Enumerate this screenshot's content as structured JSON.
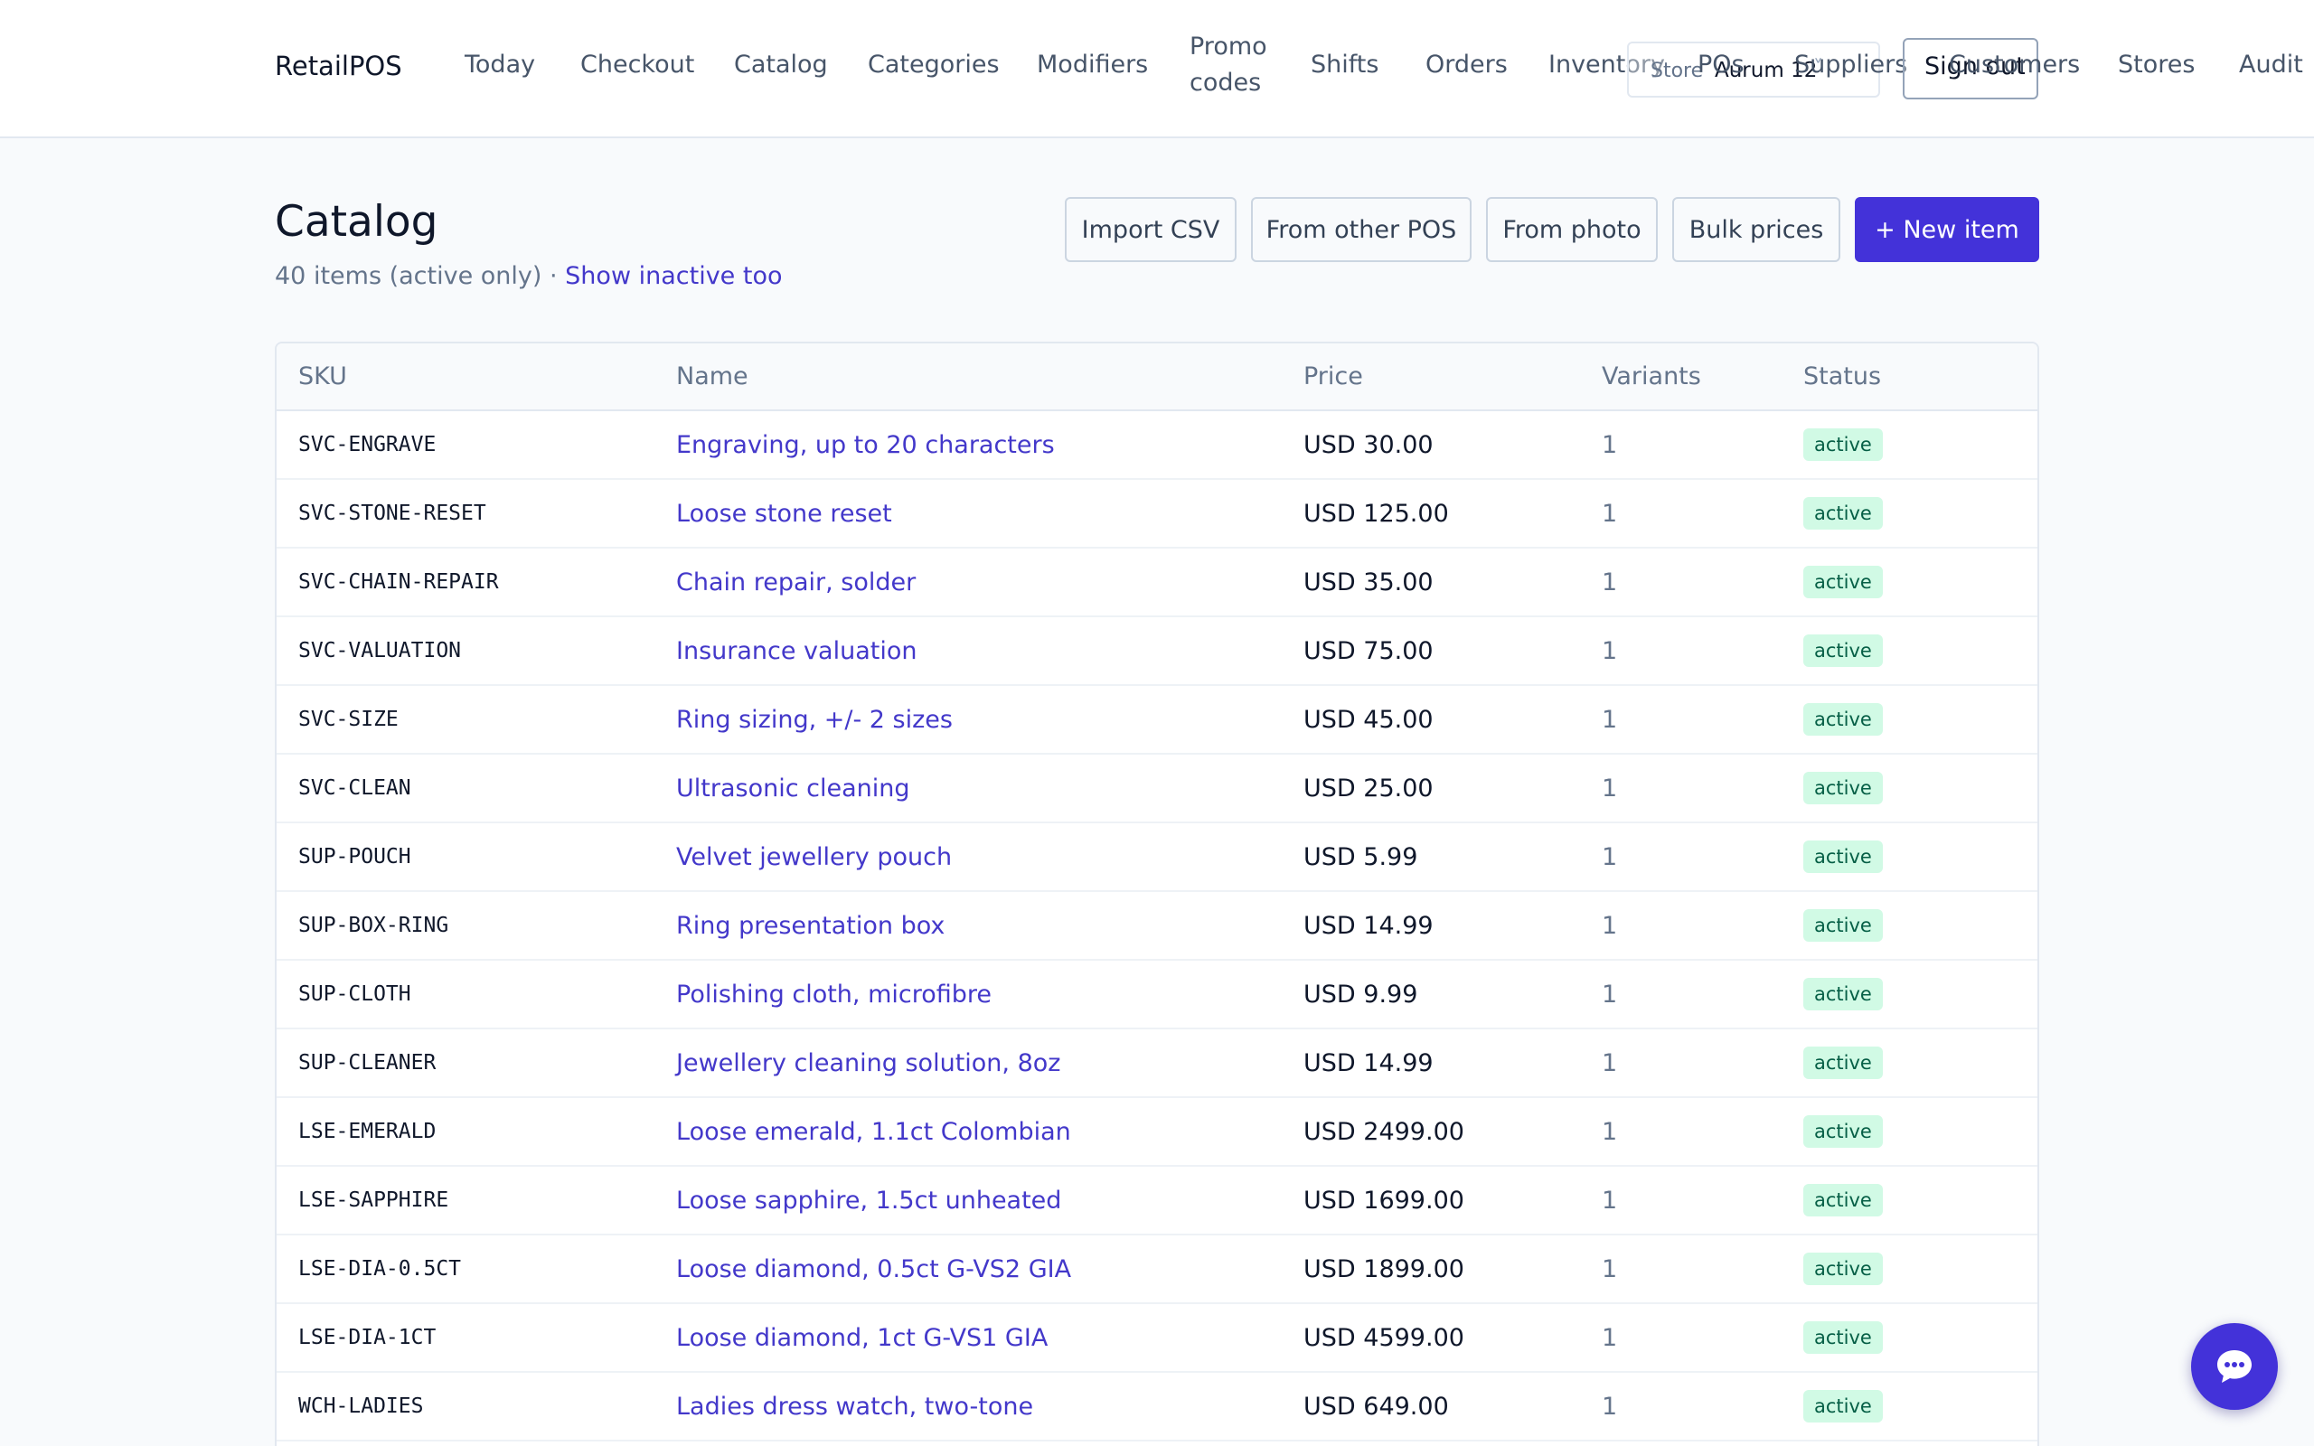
{
  "app": {
    "brand": "RetailPOS"
  },
  "nav": {
    "items": [
      {
        "label": "Today"
      },
      {
        "label": "Checkout"
      },
      {
        "label": "Catalog"
      },
      {
        "label": "Categories"
      },
      {
        "label": "Modifiers"
      },
      {
        "label": "Promo codes"
      },
      {
        "label": "Shifts"
      },
      {
        "label": "Orders"
      },
      {
        "label": "Inventory"
      },
      {
        "label": "POs"
      },
      {
        "label": "Suppliers"
      },
      {
        "label": "Customers"
      },
      {
        "label": "Stores"
      },
      {
        "label": "Audit"
      }
    ],
    "store_label": "Store",
    "store_value": "Aurum 12",
    "store_chevron": "˅",
    "sign_out": "Sign out"
  },
  "header": {
    "title": "Catalog",
    "count_text": "40 items (active only) · ",
    "show_inactive": "Show inactive too"
  },
  "actions": {
    "import_csv": "Import CSV",
    "from_other_pos": "From other POS",
    "from_photo": "From photo",
    "bulk_prices": "Bulk prices",
    "new_item": "+ New item"
  },
  "table": {
    "columns": [
      "SKU",
      "Name",
      "Price",
      "Variants",
      "Status"
    ],
    "rows": [
      {
        "sku": "SVC-ENGRAVE",
        "name": "Engraving, up to 20 characters",
        "price": "USD 30.00",
        "variants": "1",
        "status": "active"
      },
      {
        "sku": "SVC-STONE-RESET",
        "name": "Loose stone reset",
        "price": "USD 125.00",
        "variants": "1",
        "status": "active"
      },
      {
        "sku": "SVC-CHAIN-REPAIR",
        "name": "Chain repair, solder",
        "price": "USD 35.00",
        "variants": "1",
        "status": "active"
      },
      {
        "sku": "SVC-VALUATION",
        "name": "Insurance valuation",
        "price": "USD 75.00",
        "variants": "1",
        "status": "active"
      },
      {
        "sku": "SVC-SIZE",
        "name": "Ring sizing, +/- 2 sizes",
        "price": "USD 45.00",
        "variants": "1",
        "status": "active"
      },
      {
        "sku": "SVC-CLEAN",
        "name": "Ultrasonic cleaning",
        "price": "USD 25.00",
        "variants": "1",
        "status": "active"
      },
      {
        "sku": "SUP-POUCH",
        "name": "Velvet jewellery pouch",
        "price": "USD 5.99",
        "variants": "1",
        "status": "active"
      },
      {
        "sku": "SUP-BOX-RING",
        "name": "Ring presentation box",
        "price": "USD 14.99",
        "variants": "1",
        "status": "active"
      },
      {
        "sku": "SUP-CLOTH",
        "name": "Polishing cloth, microfibre",
        "price": "USD 9.99",
        "variants": "1",
        "status": "active"
      },
      {
        "sku": "SUP-CLEANER",
        "name": "Jewellery cleaning solution, 8oz",
        "price": "USD 14.99",
        "variants": "1",
        "status": "active"
      },
      {
        "sku": "LSE-EMERALD",
        "name": "Loose emerald, 1.1ct Colombian",
        "price": "USD 2499.00",
        "variants": "1",
        "status": "active"
      },
      {
        "sku": "LSE-SAPPHIRE",
        "name": "Loose sapphire, 1.5ct unheated",
        "price": "USD 1699.00",
        "variants": "1",
        "status": "active"
      },
      {
        "sku": "LSE-DIA-0.5CT",
        "name": "Loose diamond, 0.5ct G-VS2 GIA",
        "price": "USD 1899.00",
        "variants": "1",
        "status": "active"
      },
      {
        "sku": "LSE-DIA-1CT",
        "name": "Loose diamond, 1ct G-VS1 GIA",
        "price": "USD 4599.00",
        "variants": "1",
        "status": "active"
      },
      {
        "sku": "WCH-LADIES",
        "name": "Ladies dress watch, two-tone",
        "price": "USD 649.00",
        "variants": "1",
        "status": "active"
      }
    ]
  },
  "chat": {
    "icon": "chat-bubble-icon"
  },
  "colors": {
    "accent": "#4332d9",
    "link": "#4338ca",
    "badge_bg": "#d1fae5",
    "badge_text": "#065f46"
  }
}
